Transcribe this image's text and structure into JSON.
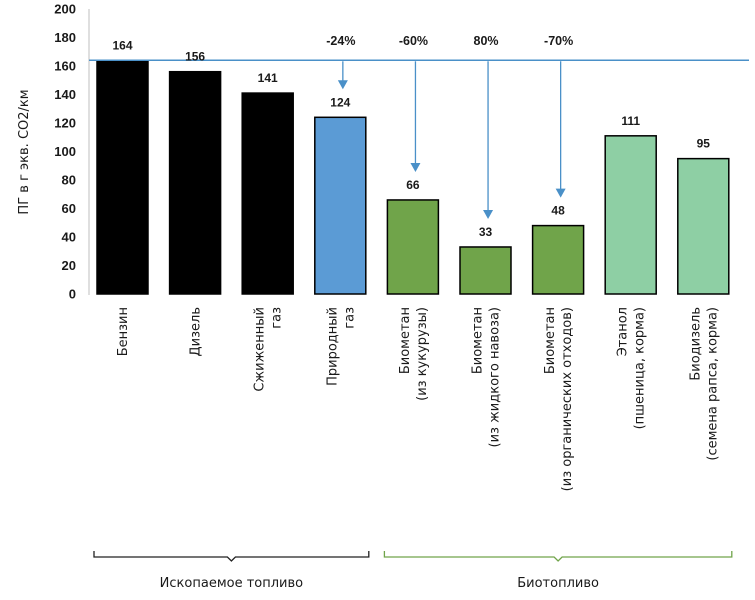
{
  "chart_data": {
    "type": "bar",
    "ylabel": "ПГ в г экв. CO2/км",
    "ylim": [
      0,
      200
    ],
    "yticks": [
      0,
      20,
      40,
      60,
      80,
      100,
      120,
      140,
      160,
      180,
      200
    ],
    "reference_line": 164,
    "categories": [
      {
        "lines": [
          "Бензин"
        ],
        "value": 164,
        "label": "164",
        "color": "#000000"
      },
      {
        "lines": [
          "Дизель"
        ],
        "value": 156,
        "label": "156",
        "color": "#000000"
      },
      {
        "lines": [
          "Сжиженный",
          "газ"
        ],
        "value": 141,
        "label": "141",
        "color": "#000000"
      },
      {
        "lines": [
          "Природный",
          "газ"
        ],
        "value": 124,
        "label": "124",
        "color": "#5b9bd5"
      },
      {
        "lines": [
          "Биометан",
          "(из кукурузы)"
        ],
        "value": 66,
        "label": "66",
        "color": "#70a44a"
      },
      {
        "lines": [
          "Биометан",
          "(из жидкого навоза)"
        ],
        "value": 33,
        "label": "33",
        "color": "#70a44a"
      },
      {
        "lines": [
          "Биометан",
          "(из органических отходов)"
        ],
        "value": 48,
        "label": "48",
        "color": "#70a44a"
      },
      {
        "lines": [
          "Этанол",
          "(пшеница, корма)"
        ],
        "value": 111,
        "label": "111",
        "color": "#8ecfa4"
      },
      {
        "lines": [
          "Биодизель",
          "(семена рапса, корма)"
        ],
        "value": 95,
        "label": "95",
        "color": "#8ecfa4"
      }
    ],
    "reductions": [
      {
        "index": 3,
        "label": "-24%"
      },
      {
        "index": 4,
        "label": "-60%"
      },
      {
        "index": 5,
        "label": "80%"
      },
      {
        "index": 6,
        "label": "-70%"
      }
    ],
    "groups": [
      {
        "label": "Ископаемое топливо",
        "start": 0,
        "end": 3,
        "color": "#222222"
      },
      {
        "label": "Биотопливо",
        "start": 4,
        "end": 8,
        "color": "#70a44a"
      }
    ]
  }
}
